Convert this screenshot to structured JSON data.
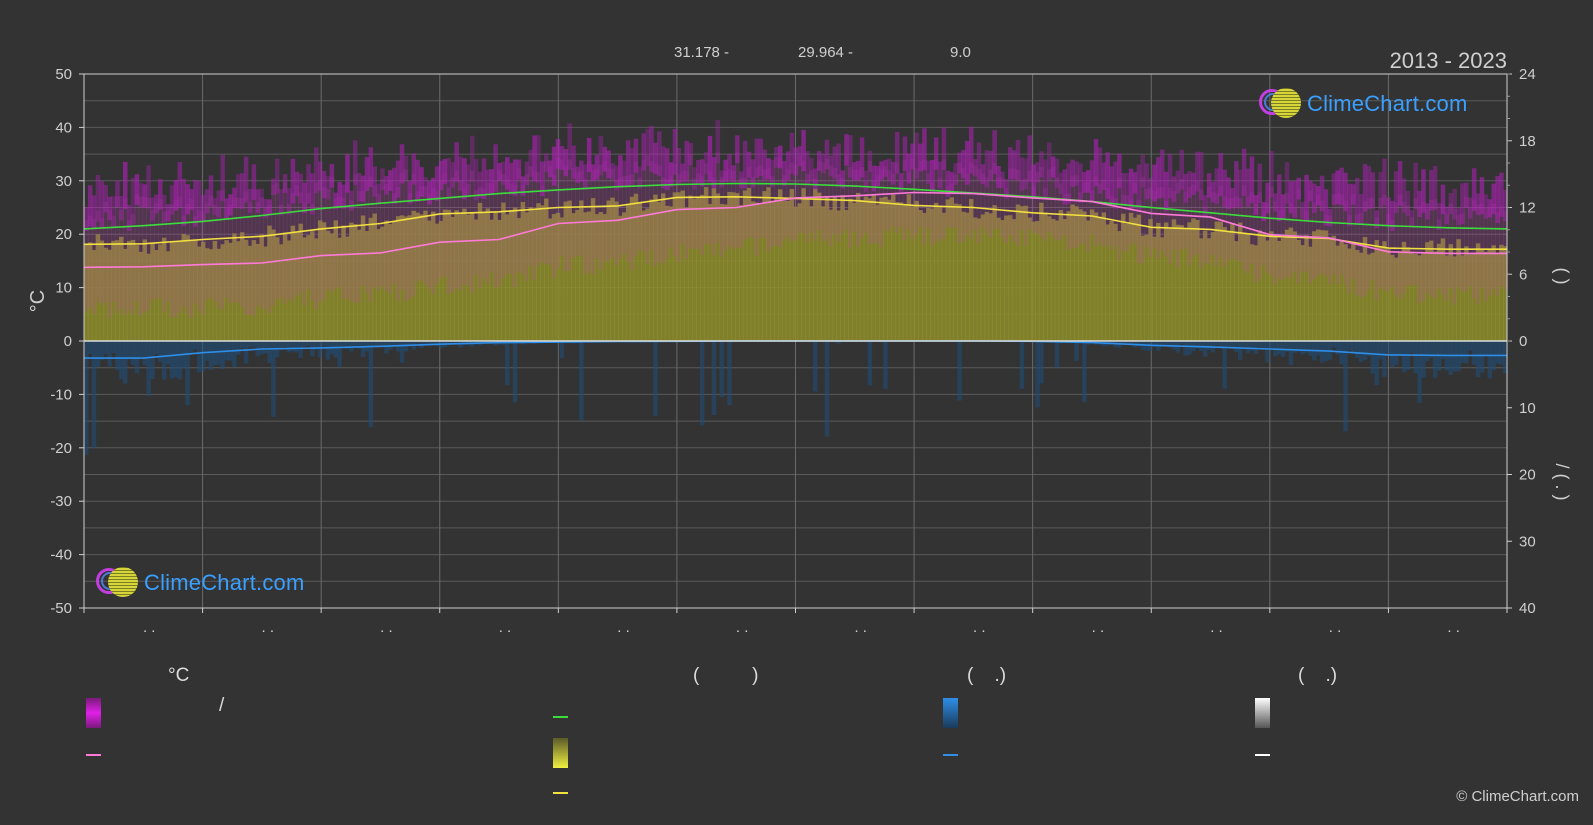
{
  "header": {
    "years": "2013 - 2023",
    "stats": [
      {
        "text": "31.178 -"
      },
      {
        "text": "29.964 -"
      },
      {
        "text": "9.0"
      }
    ]
  },
  "logo_text": "ClimeChart.com",
  "copyright": "© ClimeChart.com",
  "chart_data": {
    "type": "area",
    "left_axis": {
      "label": "°C",
      "range": [
        -50,
        50
      ],
      "ticks": [
        -50,
        -40,
        -30,
        -20,
        -10,
        0,
        10,
        20,
        30,
        40,
        50
      ]
    },
    "right_axis_top": {
      "range": [
        0,
        24
      ],
      "ticks": [
        24,
        18,
        12,
        6,
        0
      ],
      "label_glyphs": "(   )"
    },
    "right_axis_bottom": {
      "range": [
        0,
        40
      ],
      "ticks": [
        0,
        10,
        20,
        30,
        40
      ],
      "label_glyphs": "/    (  .  )"
    },
    "month_labels": [
      ". .",
      ". .",
      ". .",
      ". .",
      ". .",
      ". .",
      ". .",
      ". .",
      ". .",
      ". .",
      ". .",
      ". ."
    ],
    "grid": true,
    "series": [
      {
        "key": "green",
        "color": "#3ddc3d",
        "x": [
          0,
          0.5,
          1,
          1.5,
          2,
          2.5,
          3,
          3.5,
          4,
          4.5,
          5,
          5.5,
          6,
          6.5,
          7,
          7.5,
          8,
          8.5,
          9,
          9.5,
          10,
          10.5,
          11,
          11.5,
          12
        ],
        "y": [
          21.0,
          21.6,
          22.4,
          23.5,
          24.8,
          25.8,
          26.7,
          27.6,
          28.3,
          28.9,
          29.3,
          29.5,
          29.4,
          29.0,
          28.4,
          27.7,
          27.0,
          26.1,
          25.0,
          24.0,
          23.0,
          22.2,
          21.6,
          21.2,
          21.0
        ]
      },
      {
        "key": "yellow",
        "color": "#f0e040",
        "x": [
          0,
          0.5,
          1,
          1.5,
          2,
          2.5,
          3,
          3.5,
          4,
          4.5,
          5,
          5.5,
          6,
          6.5,
          7,
          7.5,
          8,
          8.5,
          9,
          9.5,
          10,
          10.5,
          11,
          11.5,
          12
        ],
        "y": [
          18.1,
          18.2,
          19.0,
          19.6,
          21.0,
          22.0,
          23.8,
          24.2,
          25.0,
          25.3,
          26.9,
          27.0,
          26.7,
          26.3,
          25.4,
          25.0,
          24.0,
          23.4,
          21.3,
          20.9,
          19.6,
          19.2,
          17.4,
          17.2,
          17.2
        ]
      },
      {
        "key": "pink",
        "color": "#ff7ad8",
        "x": [
          0,
          0.5,
          1,
          1.5,
          2,
          2.5,
          3,
          3.5,
          4,
          4.5,
          5,
          5.5,
          6,
          6.5,
          7,
          7.5,
          8,
          8.5,
          9,
          9.5,
          10,
          10.5,
          11,
          11.5,
          12
        ],
        "y": [
          13.8,
          13.9,
          14.3,
          14.6,
          16.0,
          16.5,
          18.5,
          19.0,
          22.0,
          22.6,
          24.6,
          25.0,
          26.8,
          27.2,
          27.8,
          27.6,
          26.8,
          26.1,
          23.9,
          23.2,
          19.9,
          19.3,
          16.7,
          16.4,
          16.4
        ]
      },
      {
        "key": "blue",
        "color": "#2e8ee8",
        "x": [
          0,
          0.5,
          1,
          1.5,
          2,
          2.5,
          3,
          3.5,
          4,
          4.5,
          5,
          5.5,
          6,
          6.5,
          7,
          7.5,
          8,
          8.5,
          9,
          9.5,
          10,
          10.5,
          11,
          11.5,
          12
        ],
        "y": [
          -3.2,
          -3.2,
          -2.2,
          -1.5,
          -1.3,
          -1.0,
          -0.6,
          -0.3,
          -0.2,
          -0.1,
          -0.05,
          0,
          0,
          0,
          0,
          0,
          -0.05,
          -0.3,
          -0.8,
          -1.1,
          -1.5,
          -1.9,
          -2.6,
          -2.7,
          -2.7
        ]
      }
    ],
    "bands": [
      {
        "key": "magenta-band",
        "color": "#d020d0",
        "upper_offset": 4.5
      },
      {
        "key": "yellow-band",
        "color": "#9a9a28"
      }
    ]
  },
  "legend": {
    "col1": {
      "head": "°C",
      "row1_text": "/"
    },
    "col2": {
      "head": "(          )"
    },
    "col3": {
      "head": "(    .)"
    },
    "col4": {
      "head": "(    .)"
    },
    "colors": {
      "magenta": "#e020e8",
      "green": "#3ddc3d",
      "pink": "#ff7ad8",
      "yellow": "#f0e040",
      "blue": "#2e8ee8",
      "white": "#ffffff"
    }
  }
}
